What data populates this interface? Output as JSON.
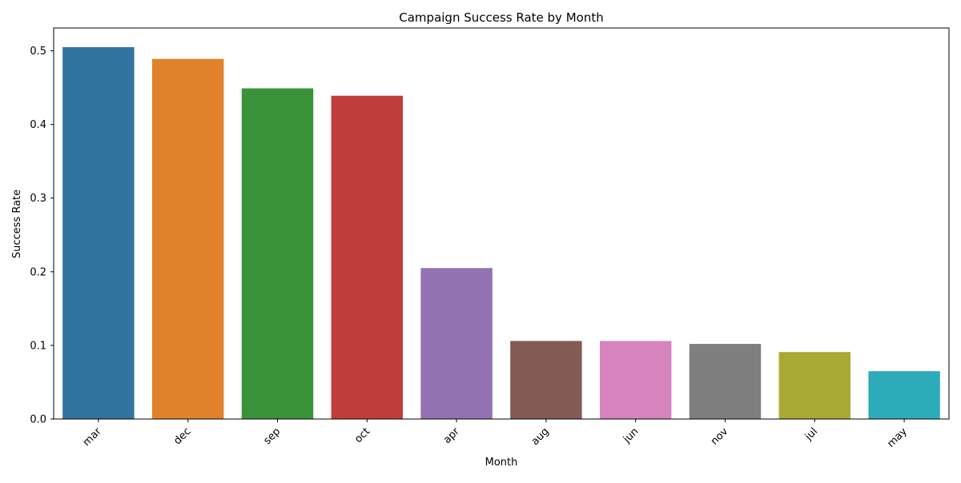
{
  "chart_data": {
    "type": "bar",
    "title": "Campaign Success Rate by Month",
    "xlabel": "Month",
    "ylabel": "Success Rate",
    "categories": [
      "mar",
      "dec",
      "sep",
      "oct",
      "apr",
      "aug",
      "jun",
      "nov",
      "jul",
      "may"
    ],
    "values": [
      0.505,
      0.489,
      0.449,
      0.439,
      0.205,
      0.106,
      0.106,
      0.102,
      0.091,
      0.065
    ],
    "colors": [
      "#3274a1",
      "#e1812c",
      "#3a923a",
      "#c03d3e",
      "#9372b2",
      "#845b53",
      "#d684bd",
      "#7f7f7f",
      "#a9aa35",
      "#2eabb8"
    ],
    "ylim": [
      0,
      0.531
    ],
    "yticks": [
      0.0,
      0.1,
      0.2,
      0.3,
      0.4,
      0.5
    ],
    "ytick_labels": [
      "0.0",
      "0.1",
      "0.2",
      "0.3",
      "0.4",
      "0.5"
    ],
    "grid": false,
    "legend": "none"
  }
}
